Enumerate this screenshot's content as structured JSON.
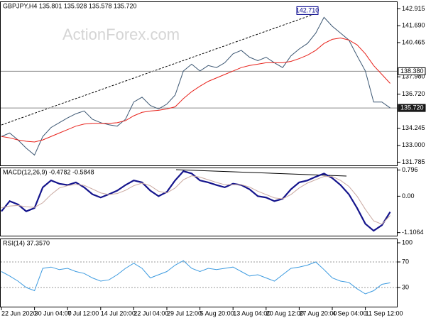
{
  "chart_data": [
    {
      "type": "line",
      "title": "GBPJPY,H4  135.801 135.928 135.578 135.720",
      "watermark": "ActionForex.com",
      "categories": [
        "22 Jun 2020",
        null,
        null,
        null,
        "30 Jun 04:00",
        null,
        null,
        null,
        "7 Jul 12:00",
        null,
        null,
        null,
        "14 Jul 20:00",
        null,
        null,
        null,
        "22 Jul 04:00",
        null,
        null,
        null,
        "29 Jul 12:00",
        null,
        null,
        null,
        "5 Aug 20:00",
        null,
        null,
        null,
        "13 Aug 04:00",
        null,
        null,
        null,
        "20 Aug 12:00",
        null,
        null,
        null,
        "27 Aug 20:00",
        null,
        null,
        null,
        "4 Sep 04:00",
        null,
        null,
        null,
        "11 Sep 12:00",
        null,
        null,
        null
      ],
      "series": [
        {
          "name": "GBPJPY",
          "color": "#3b5672",
          "values": [
            133.65,
            133.9,
            133.4,
            132.8,
            132.3,
            133.65,
            134.3,
            134.65,
            135.0,
            135.3,
            135.5,
            134.9,
            134.65,
            134.5,
            134.4,
            134.9,
            136.15,
            136.5,
            135.9,
            135.65,
            136.0,
            136.65,
            138.4,
            138.9,
            138.4,
            138.8,
            138.65,
            139.0,
            139.65,
            139.9,
            139.4,
            139.15,
            139.4,
            139.0,
            138.65,
            139.5,
            140.0,
            140.4,
            141.15,
            142.3,
            141.65,
            141.15,
            140.65,
            139.5,
            138.4,
            136.15,
            136.15,
            135.72
          ]
        },
        {
          "name": "MA",
          "color": "#e8221b",
          "values": [
            133.65,
            133.55,
            133.4,
            133.3,
            133.25,
            133.4,
            133.65,
            133.9,
            134.15,
            134.4,
            134.55,
            134.6,
            134.6,
            134.6,
            134.65,
            134.8,
            135.15,
            135.4,
            135.5,
            135.55,
            135.65,
            135.8,
            136.4,
            136.9,
            137.3,
            137.65,
            137.9,
            138.15,
            138.4,
            138.65,
            138.8,
            138.9,
            139.0,
            139.0,
            139.0,
            139.1,
            139.3,
            139.55,
            139.9,
            140.4,
            140.7,
            140.8,
            140.65,
            140.3,
            139.65,
            138.8,
            138.15,
            137.5
          ]
        }
      ],
      "ylim": [
        131.55,
        143.4
      ],
      "yticks": [
        142.915,
        {
          "value": 141.69,
          "label": "141.690"
        },
        140.465,
        {
          "value": 137.98,
          "label": "137.980"
        },
        {
          "value": 136.72,
          "label": "136.720"
        },
        134.245,
        {
          "value": 133,
          "label": "133.000"
        },
        131.785
      ],
      "levels": [
        {
          "value": 138.38,
          "label": "138.380"
        },
        {
          "value": 135.72,
          "label": "135.720"
        }
      ],
      "annotations": [
        {
          "value": 142.71,
          "label": "142.710"
        }
      ]
    },
    {
      "type": "line",
      "title": "MACD(12,26,9) -0.4782 -0.5848",
      "series": [
        {
          "name": "MACD",
          "color": "#14148c",
          "values": [
            -0.46,
            -0.15,
            -0.25,
            -0.46,
            -0.36,
            0.27,
            0.48,
            0.38,
            0.34,
            0.42,
            0.27,
            0.06,
            -0.04,
            0.06,
            0.17,
            0.34,
            0.48,
            0.42,
            0.17,
            0.0,
            0.13,
            0.48,
            0.76,
            0.69,
            0.48,
            0.42,
            0.34,
            0.27,
            0.38,
            0.34,
            0.21,
            0.0,
            -0.04,
            -0.15,
            -0.08,
            0.21,
            0.42,
            0.48,
            0.59,
            0.69,
            0.55,
            0.34,
            0.06,
            -0.36,
            -0.84,
            -1.05,
            -0.88,
            -0.4782
          ]
        },
        {
          "name": "Signal",
          "color": "#c9a8a0",
          "values": [
            -0.35,
            -0.3,
            -0.28,
            -0.32,
            -0.34,
            -0.2,
            0.05,
            0.25,
            0.32,
            0.36,
            0.33,
            0.22,
            0.1,
            0.05,
            0.08,
            0.18,
            0.32,
            0.4,
            0.32,
            0.15,
            0.1,
            0.25,
            0.5,
            0.62,
            0.58,
            0.5,
            0.42,
            0.35,
            0.35,
            0.35,
            0.28,
            0.15,
            0.05,
            -0.05,
            -0.08,
            0.05,
            0.25,
            0.4,
            0.5,
            0.6,
            0.6,
            0.48,
            0.3,
            0.0,
            -0.4,
            -0.75,
            -0.85,
            -0.5848
          ]
        }
      ],
      "ylim": [
        -1.2,
        0.85
      ],
      "yticks": [
        0.796,
        {
          "value": 0,
          "label": "0.00"
        },
        -1.1064
      ]
    },
    {
      "type": "line",
      "title": "RSI(14) 37.3570",
      "series": [
        {
          "name": "RSI",
          "color": "#3d9be0",
          "values": [
            55,
            48,
            40,
            30,
            25,
            60,
            62,
            58,
            60,
            55,
            52,
            45,
            40,
            42,
            50,
            60,
            68,
            60,
            45,
            50,
            55,
            65,
            72,
            60,
            55,
            60,
            58,
            60,
            62,
            55,
            48,
            50,
            45,
            40,
            50,
            60,
            62,
            65,
            70,
            58,
            45,
            40,
            38,
            28,
            20,
            25,
            35,
            37.357
          ]
        }
      ],
      "ylim": [
        0,
        100
      ],
      "yticks": [
        100,
        70,
        30
      ],
      "grid": true
    }
  ]
}
